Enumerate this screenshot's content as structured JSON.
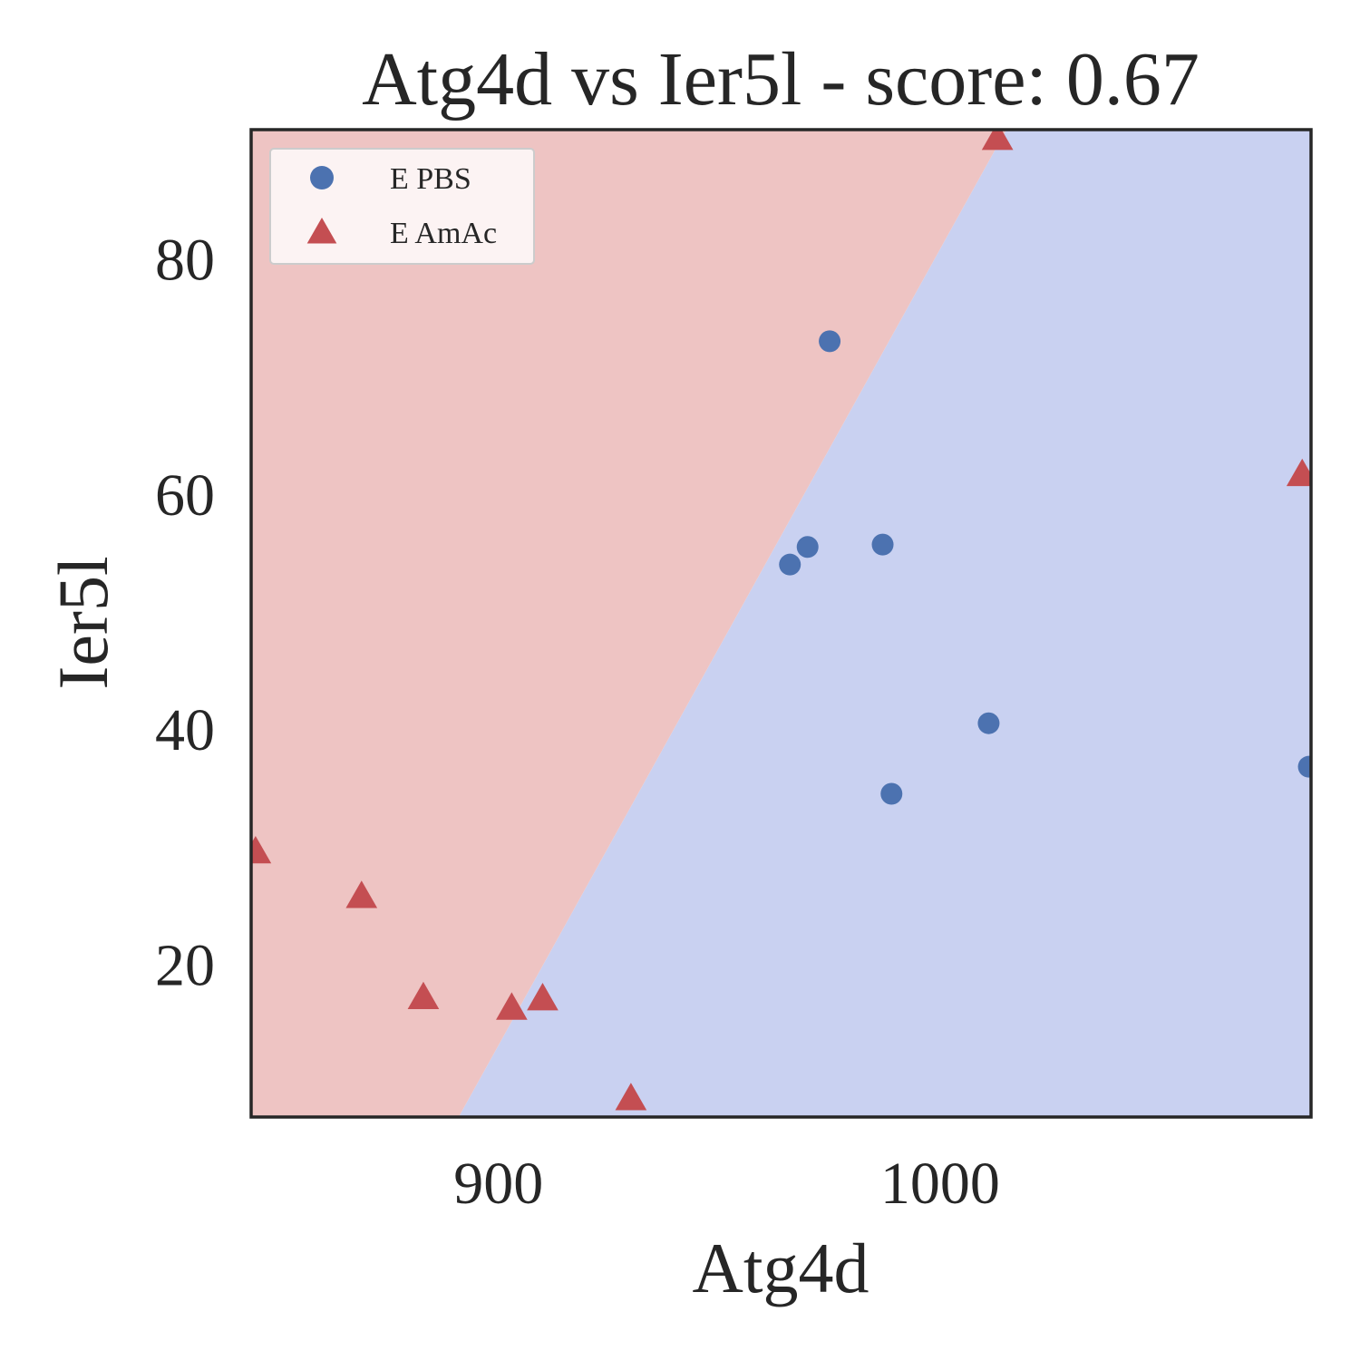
{
  "chart_data": {
    "type": "scatter",
    "title": "Atg4d vs Ier5l - score: 0.67",
    "xlabel": "Atg4d",
    "ylabel": "Ier5l",
    "xlim": [
      844,
      1084
    ],
    "ylim": [
      7,
      91
    ],
    "xticks": [
      900,
      1000
    ],
    "yticks": [
      20,
      40,
      60,
      80
    ],
    "grid": false,
    "legend_position": "top-left",
    "decision_regions": {
      "boundary": [
        [
          891,
          7
        ],
        [
          1015,
          91
        ]
      ],
      "left_region_class": "E AmAc",
      "right_region_class": "E PBS",
      "colors": {
        "E AmAc": "#eec4c3",
        "E PBS": "#c9d1f1"
      }
    },
    "series": [
      {
        "name": "E PBS",
        "marker": "circle",
        "color": "#4c72b0",
        "points": [
          {
            "x": 975,
            "y": 73
          },
          {
            "x": 970,
            "y": 55.5
          },
          {
            "x": 966,
            "y": 54
          },
          {
            "x": 987,
            "y": 55.7
          },
          {
            "x": 989,
            "y": 34.5
          },
          {
            "x": 1011,
            "y": 40.5
          },
          {
            "x": 1083.5,
            "y": 36.8
          }
        ]
      },
      {
        "name": "E AmAc",
        "marker": "triangle",
        "color": "#c44e52",
        "points": [
          {
            "x": 1013,
            "y": 90.3
          },
          {
            "x": 1082,
            "y": 61.7
          },
          {
            "x": 845,
            "y": 29.6
          },
          {
            "x": 869,
            "y": 25.8
          },
          {
            "x": 883,
            "y": 17.2
          },
          {
            "x": 903,
            "y": 16.3
          },
          {
            "x": 910,
            "y": 17.1
          },
          {
            "x": 930,
            "y": 8.6
          }
        ]
      }
    ]
  }
}
